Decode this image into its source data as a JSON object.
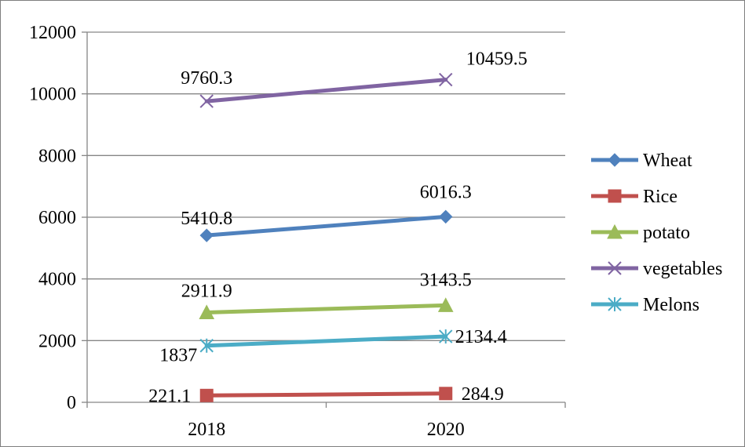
{
  "chart_data": {
    "type": "line",
    "title": "",
    "xlabel": "",
    "ylabel": "",
    "categories": [
      "2018",
      "2020"
    ],
    "ylim": [
      0,
      12000
    ],
    "yticks": [
      0,
      2000,
      4000,
      6000,
      8000,
      10000,
      12000
    ],
    "grid": true,
    "legend_position": "right",
    "series": [
      {
        "name": "Wheat",
        "values": [
          5410.8,
          6016.3
        ],
        "labels": [
          "5410.8",
          "6016.3"
        ],
        "color": "#4f81bd",
        "marker": "diamond"
      },
      {
        "name": "Rice",
        "values": [
          221.1,
          284.9
        ],
        "labels": [
          "221.1",
          "284.9"
        ],
        "color": "#c0504d",
        "marker": "square"
      },
      {
        "name": "potato",
        "values": [
          2911.9,
          3143.5
        ],
        "labels": [
          "2911.9",
          "3143.5"
        ],
        "color": "#9bbb59",
        "marker": "triangle"
      },
      {
        "name": "vegetables",
        "values": [
          9760.3,
          10459.5
        ],
        "labels": [
          "9760.3",
          "10459.5"
        ],
        "color": "#8064a2",
        "marker": "x"
      },
      {
        "name": "Melons",
        "values": [
          1837,
          2134.4
        ],
        "labels": [
          "1837",
          "2134.4"
        ],
        "color": "#4bacc6",
        "marker": "star"
      }
    ]
  }
}
